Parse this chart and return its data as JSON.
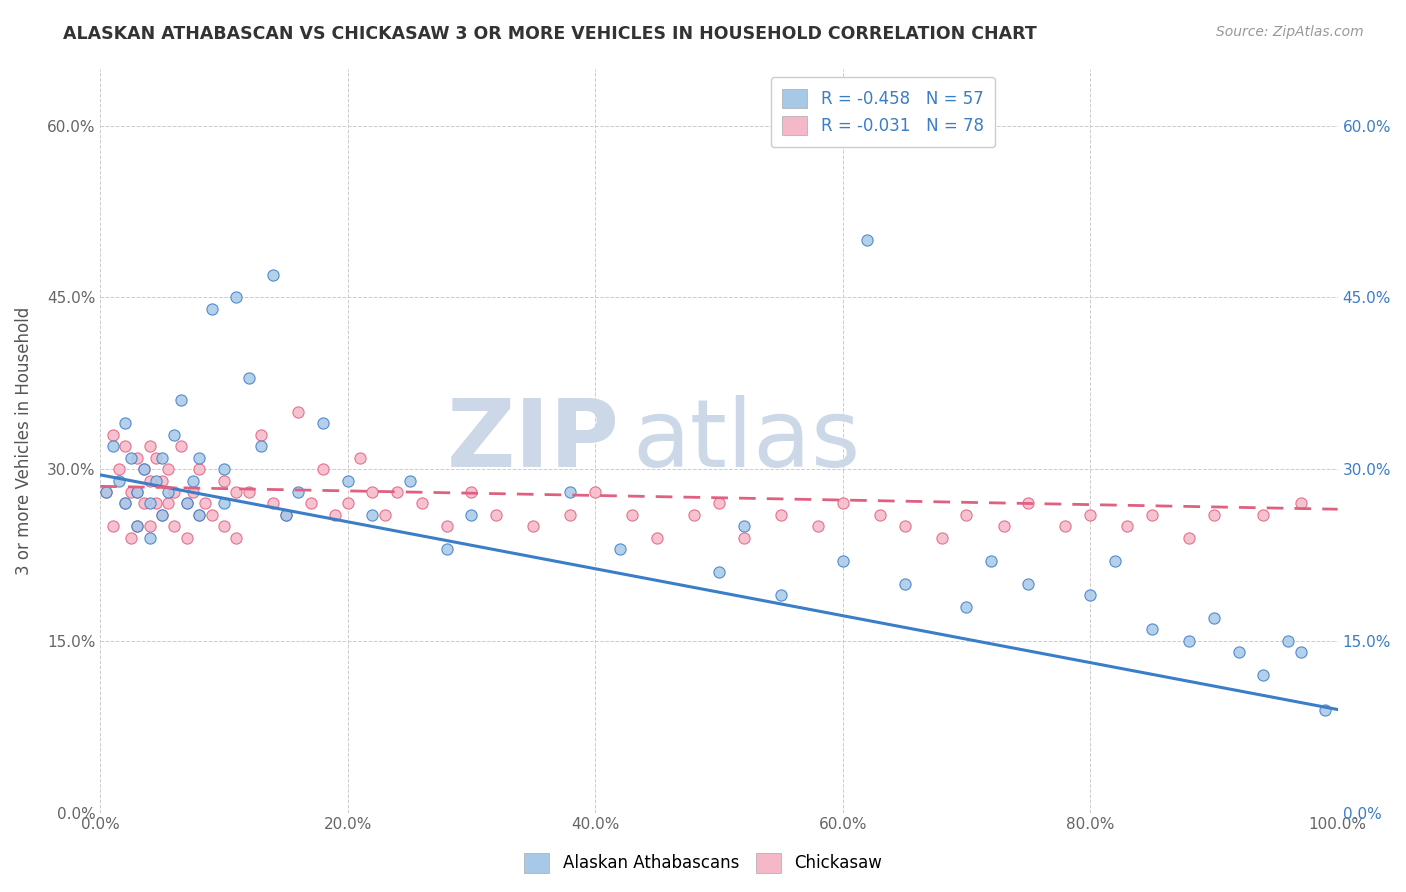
{
  "title": "ALASKAN ATHABASCAN VS CHICKASAW 3 OR MORE VEHICLES IN HOUSEHOLD CORRELATION CHART",
  "source": "Source: ZipAtlas.com",
  "ylabel": "3 or more Vehicles in Household",
  "xlim": [
    0.0,
    1.0
  ],
  "ylim": [
    0.0,
    0.65
  ],
  "xtick_labels": [
    "0.0%",
    "20.0%",
    "40.0%",
    "60.0%",
    "80.0%",
    "100.0%"
  ],
  "ytick_labels": [
    "0.0%",
    "15.0%",
    "30.0%",
    "45.0%",
    "60.0%"
  ],
  "ytick_values": [
    0.0,
    0.15,
    0.3,
    0.45,
    0.6
  ],
  "xtick_values": [
    0.0,
    0.2,
    0.4,
    0.6,
    0.8,
    1.0
  ],
  "legend_R1": "R = -0.458",
  "legend_N1": "N = 57",
  "legend_R2": "R = -0.031",
  "legend_N2": "N = 78",
  "color_blue": "#a8c8e8",
  "color_pink": "#f5b8c8",
  "line_blue": "#3a7ec8",
  "line_pink": "#e06080",
  "title_color": "#333333",
  "source_color": "#999999",
  "watermark_zip": "ZIP",
  "watermark_atlas": "atlas",
  "watermark_color": "#ccd8e8",
  "blue_scatter_x": [
    0.005,
    0.01,
    0.015,
    0.02,
    0.02,
    0.025,
    0.03,
    0.03,
    0.035,
    0.04,
    0.04,
    0.045,
    0.05,
    0.05,
    0.055,
    0.06,
    0.065,
    0.07,
    0.075,
    0.08,
    0.08,
    0.09,
    0.1,
    0.1,
    0.11,
    0.12,
    0.13,
    0.14,
    0.15,
    0.16,
    0.18,
    0.2,
    0.22,
    0.25,
    0.28,
    0.3,
    0.38,
    0.42,
    0.5,
    0.52,
    0.55,
    0.6,
    0.62,
    0.65,
    0.7,
    0.72,
    0.75,
    0.8,
    0.82,
    0.85,
    0.88,
    0.9,
    0.92,
    0.94,
    0.96,
    0.97,
    0.99
  ],
  "blue_scatter_y": [
    0.28,
    0.32,
    0.29,
    0.34,
    0.27,
    0.31,
    0.28,
    0.25,
    0.3,
    0.27,
    0.24,
    0.29,
    0.26,
    0.31,
    0.28,
    0.33,
    0.36,
    0.27,
    0.29,
    0.26,
    0.31,
    0.44,
    0.3,
    0.27,
    0.45,
    0.38,
    0.32,
    0.47,
    0.26,
    0.28,
    0.34,
    0.29,
    0.26,
    0.29,
    0.23,
    0.26,
    0.28,
    0.23,
    0.21,
    0.25,
    0.19,
    0.22,
    0.5,
    0.2,
    0.18,
    0.22,
    0.2,
    0.19,
    0.22,
    0.16,
    0.15,
    0.17,
    0.14,
    0.12,
    0.15,
    0.14,
    0.09
  ],
  "pink_scatter_x": [
    0.005,
    0.01,
    0.01,
    0.015,
    0.02,
    0.02,
    0.025,
    0.025,
    0.03,
    0.03,
    0.03,
    0.035,
    0.035,
    0.04,
    0.04,
    0.04,
    0.045,
    0.045,
    0.05,
    0.05,
    0.055,
    0.055,
    0.06,
    0.06,
    0.065,
    0.07,
    0.07,
    0.075,
    0.08,
    0.08,
    0.085,
    0.09,
    0.1,
    0.1,
    0.11,
    0.11,
    0.12,
    0.13,
    0.14,
    0.15,
    0.16,
    0.17,
    0.18,
    0.19,
    0.2,
    0.21,
    0.22,
    0.23,
    0.24,
    0.26,
    0.28,
    0.3,
    0.32,
    0.35,
    0.38,
    0.4,
    0.43,
    0.45,
    0.48,
    0.5,
    0.52,
    0.55,
    0.58,
    0.6,
    0.63,
    0.65,
    0.68,
    0.7,
    0.73,
    0.75,
    0.78,
    0.8,
    0.83,
    0.85,
    0.88,
    0.9,
    0.94,
    0.97
  ],
  "pink_scatter_y": [
    0.28,
    0.33,
    0.25,
    0.3,
    0.32,
    0.27,
    0.28,
    0.24,
    0.31,
    0.28,
    0.25,
    0.3,
    0.27,
    0.32,
    0.29,
    0.25,
    0.31,
    0.27,
    0.29,
    0.26,
    0.3,
    0.27,
    0.28,
    0.25,
    0.32,
    0.27,
    0.24,
    0.28,
    0.26,
    0.3,
    0.27,
    0.26,
    0.29,
    0.25,
    0.28,
    0.24,
    0.28,
    0.33,
    0.27,
    0.26,
    0.35,
    0.27,
    0.3,
    0.26,
    0.27,
    0.31,
    0.28,
    0.26,
    0.28,
    0.27,
    0.25,
    0.28,
    0.26,
    0.25,
    0.26,
    0.28,
    0.26,
    0.24,
    0.26,
    0.27,
    0.24,
    0.26,
    0.25,
    0.27,
    0.26,
    0.25,
    0.24,
    0.26,
    0.25,
    0.27,
    0.25,
    0.26,
    0.25,
    0.26,
    0.24,
    0.26,
    0.26,
    0.27
  ],
  "blue_line_x0": 0.0,
  "blue_line_y0": 0.295,
  "blue_line_x1": 1.0,
  "blue_line_y1": 0.09,
  "pink_line_x0": 0.0,
  "pink_line_y0": 0.285,
  "pink_line_x1": 1.0,
  "pink_line_y1": 0.265
}
